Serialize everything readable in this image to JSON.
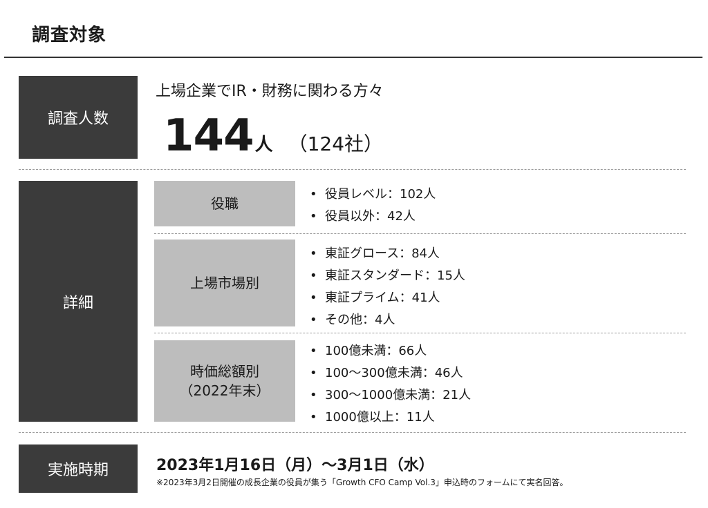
{
  "page_title": "調査対象",
  "survey_count": {
    "label": "調査人数",
    "headline": "上場企業でIR・財務に関わる方々",
    "count": "144",
    "count_unit": "人",
    "companies": "（124社）"
  },
  "details": {
    "label": "詳細",
    "groups": [
      {
        "title_lines": [
          "役職"
        ],
        "items": [
          "役員レベル：102人",
          "役員以外：42人"
        ]
      },
      {
        "title_lines": [
          "上場市場別"
        ],
        "items": [
          "東証グロース：84人",
          "東証スタンダード：15人",
          "東証プライム：41人",
          "その他：4人"
        ]
      },
      {
        "title_lines": [
          "時価総額別",
          "（2022年末）"
        ],
        "items": [
          "100億未満：66人",
          "100〜300億未満：46人",
          "300〜1000億未満：21人",
          "1000億以上：11人"
        ]
      }
    ]
  },
  "period": {
    "label": "実施時期",
    "main": "2023年1月16日（月）〜3月1日（水）",
    "note": "※2023年3月2日開催の成長企業の役員が集う「Growth CFO Camp Vol.3」申込時のフォームにて実名回答。"
  }
}
